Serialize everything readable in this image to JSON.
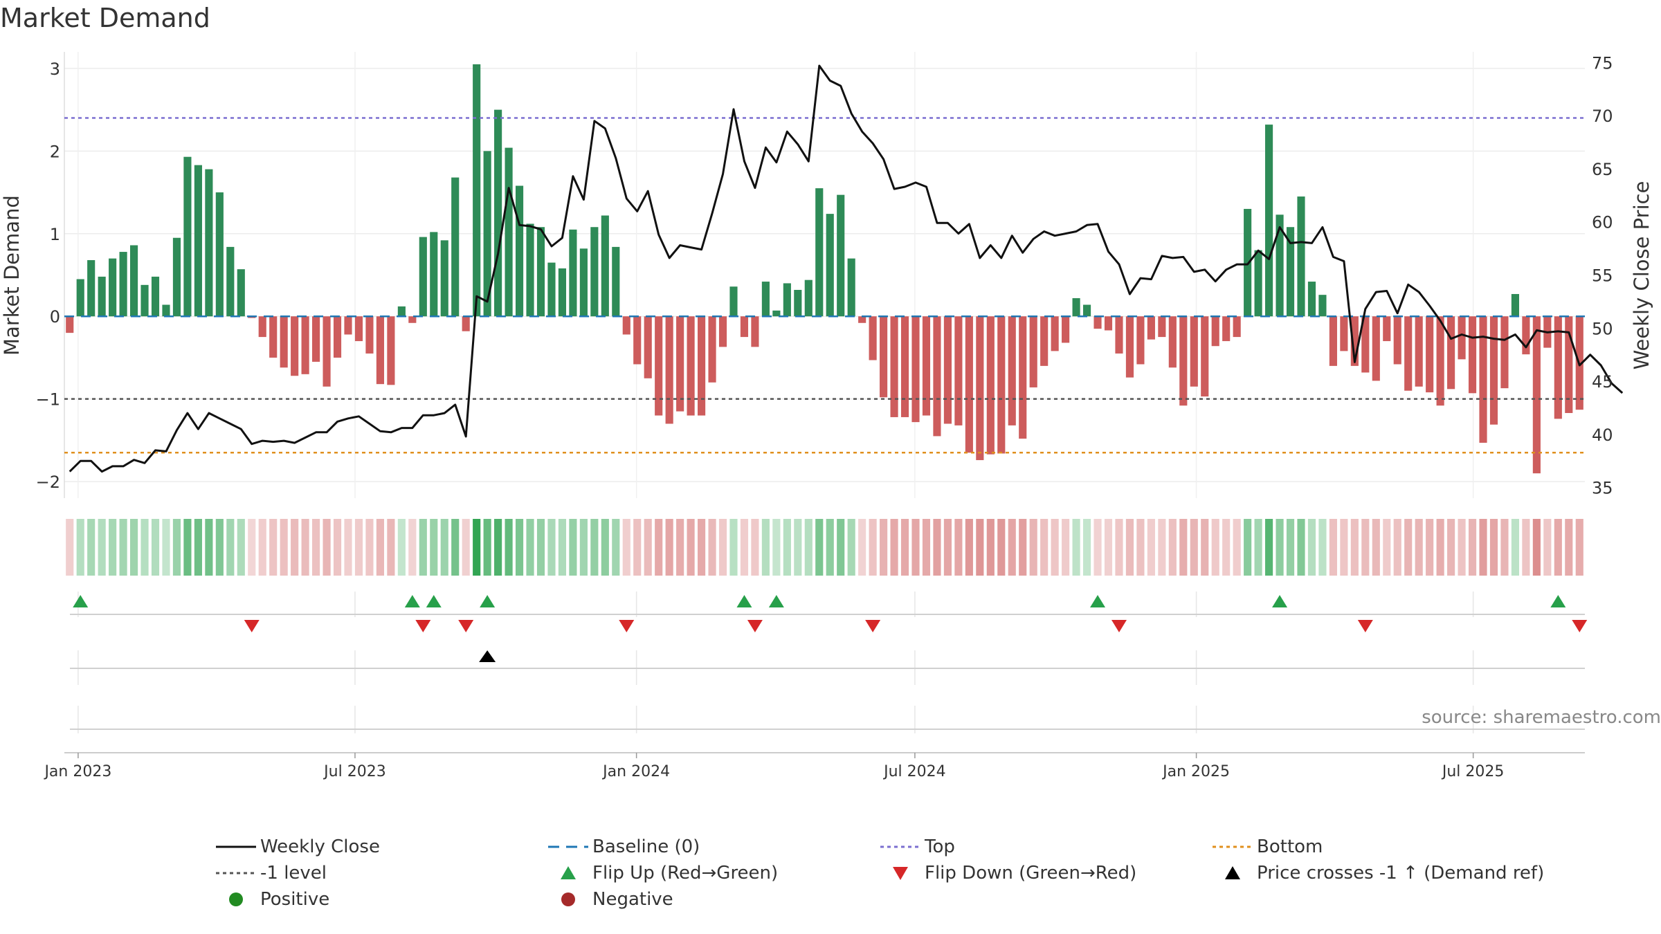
{
  "chart_data": {
    "title": "Market Demand",
    "type": "bar+line",
    "left_axis": {
      "label": "Market Demand",
      "ylim": [
        -2.2,
        3.2
      ],
      "ticks": [
        -2,
        -1,
        0,
        1,
        2,
        3
      ]
    },
    "right_axis": {
      "label": "Weekly Close Price",
      "ylim": [
        34,
        76
      ],
      "ticks": [
        35,
        40,
        45,
        50,
        55,
        60,
        65,
        70,
        75
      ]
    },
    "x_start_date": "2022-12-23",
    "x_ticks": [
      {
        "label": "Jan 2023",
        "date": "2023-01-01"
      },
      {
        "label": "Jul 2023",
        "date": "2023-07-01"
      },
      {
        "label": "Jan 2024",
        "date": "2024-01-01"
      },
      {
        "label": "Jul 2024",
        "date": "2024-07-01"
      },
      {
        "label": "Jan 2025",
        "date": "2025-01-01"
      },
      {
        "label": "Jul 2025",
        "date": "2025-07-01"
      }
    ],
    "reference_lines": {
      "top": 2.4,
      "bottom": -1.65,
      "minus_one": -1,
      "baseline": 0
    },
    "demand": [
      -0.2,
      0.45,
      0.68,
      0.48,
      0.7,
      0.78,
      0.86,
      0.38,
      0.48,
      0.14,
      0.95,
      1.93,
      1.83,
      1.78,
      1.5,
      0.84,
      0.57,
      -0.02,
      -0.25,
      -0.5,
      -0.62,
      -0.72,
      -0.7,
      -0.55,
      -0.85,
      -0.5,
      -0.22,
      -0.3,
      -0.45,
      -0.82,
      -0.83,
      0.12,
      -0.08,
      0.96,
      1.02,
      0.92,
      1.68,
      -0.18,
      3.05,
      2.0,
      2.5,
      2.04,
      1.58,
      1.12,
      1.08,
      0.65,
      0.58,
      1.05,
      0.82,
      1.08,
      1.22,
      0.84,
      -0.22,
      -0.58,
      -0.75,
      -1.2,
      -1.3,
      -1.15,
      -1.2,
      -1.2,
      -0.8,
      -0.37,
      0.36,
      -0.25,
      -0.37,
      0.42,
      0.07,
      0.4,
      0.32,
      0.44,
      1.55,
      1.24,
      1.47,
      0.7,
      -0.08,
      -0.53,
      -0.98,
      -1.22,
      -1.22,
      -1.28,
      -1.2,
      -1.45,
      -1.3,
      -1.32,
      -1.65,
      -1.74,
      -1.67,
      -1.66,
      -1.32,
      -1.48,
      -0.86,
      -0.6,
      -0.42,
      -0.32,
      0.22,
      0.14,
      -0.15,
      -0.17,
      -0.45,
      -0.74,
      -0.58,
      -0.28,
      -0.25,
      -0.62,
      -1.08,
      -0.85,
      -0.97,
      -0.36,
      -0.3,
      -0.25,
      1.3,
      0.8,
      2.32,
      1.23,
      1.08,
      1.45,
      0.42,
      0.26,
      -0.6,
      -0.42,
      -0.6,
      -0.68,
      -0.78,
      -0.3,
      -0.58,
      -0.9,
      -0.85,
      -0.92,
      -1.08,
      -0.88,
      -0.52,
      -0.93,
      -1.53,
      -1.31,
      -0.87,
      0.27,
      -0.46,
      -1.9,
      -0.38,
      -1.24,
      -1.17,
      -1.13
    ],
    "weekly_close": [
      36.5,
      37.5,
      37.5,
      36.5,
      37.0,
      37.0,
      37.6,
      37.3,
      38.5,
      38.4,
      40.4,
      42.0,
      40.5,
      42.0,
      41.5,
      41.0,
      40.5,
      39.1,
      39.4,
      39.3,
      39.4,
      39.2,
      39.7,
      40.2,
      40.2,
      41.2,
      41.5,
      41.7,
      41.0,
      40.3,
      40.2,
      40.6,
      40.6,
      41.8,
      41.8,
      42.0,
      42.8,
      39.8,
      53.0,
      52.5,
      57.0,
      63.2,
      59.7,
      59.6,
      59.3,
      57.7,
      58.5,
      64.3,
      62.1,
      69.5,
      68.8,
      66.0,
      62.2,
      61.0,
      62.9,
      58.8,
      56.6,
      57.8,
      57.6,
      57.4,
      60.8,
      64.5,
      70.6,
      65.7,
      63.2,
      67.0,
      65.6,
      68.5,
      67.3,
      65.7,
      74.7,
      73.3,
      72.8,
      70.2,
      68.5,
      67.4,
      65.9,
      63.1,
      63.3,
      63.7,
      63.3,
      59.9,
      59.9,
      58.9,
      59.8,
      56.6,
      57.8,
      56.6,
      58.7,
      57.1,
      58.4,
      59.1,
      58.7,
      58.9,
      59.1,
      59.7,
      59.8,
      57.2,
      56.0,
      53.2,
      54.7,
      54.6,
      56.8,
      56.6,
      56.7,
      55.3,
      55.5,
      54.4,
      55.5,
      56.0,
      56.0,
      57.3,
      56.5,
      59.5,
      58.0,
      58.1,
      58.0,
      59.5,
      56.7,
      56.3,
      46.8,
      51.8,
      53.4,
      53.5,
      51.4,
      54.1,
      53.4,
      52.1,
      50.7,
      49.0,
      49.4,
      49.1,
      49.2,
      49.0,
      48.9,
      49.4,
      48.2,
      49.8,
      49.6,
      49.7,
      49.6,
      46.5,
      47.5,
      46.5,
      44.8,
      43.9
    ],
    "flip_up_weeks": [
      1,
      32,
      34,
      39,
      63,
      66,
      96,
      113,
      139
    ],
    "flip_down_weeks": [
      17,
      33,
      37,
      52,
      64,
      75,
      98,
      121,
      141
    ],
    "price_cross_weeks": [
      39
    ],
    "positive_color": "#2e8b57",
    "negative_color": "#cd5c5c",
    "legend": [
      {
        "key": "weekly_close",
        "label": "Weekly Close"
      },
      {
        "key": "baseline",
        "label": "Baseline (0)"
      },
      {
        "key": "top",
        "label": "Top"
      },
      {
        "key": "bottom",
        "label": "Bottom"
      },
      {
        "key": "minus_one",
        "label": "-1 level"
      },
      {
        "key": "flip_up",
        "label": "Flip Up (Red→Green)"
      },
      {
        "key": "flip_down",
        "label": "Flip Down (Green→Red)"
      },
      {
        "key": "price_cross",
        "label": "Price crosses -1 ↑ (Demand ref)"
      },
      {
        "key": "positive",
        "label": "Positive"
      },
      {
        "key": "negative",
        "label": "Negative"
      }
    ]
  },
  "source_text": "source: sharemaestro.com",
  "colors": {
    "line": "#111111",
    "top_line": "#7b6fd0",
    "bottom_line": "#e0901e",
    "minus_one_line": "#555555",
    "baseline": "#1f77b4",
    "flip_up": "#27a04a",
    "flip_down": "#d62728",
    "price_cross": "#000000",
    "positive_dot": "#228b22",
    "negative_dot": "#a52a2a"
  }
}
